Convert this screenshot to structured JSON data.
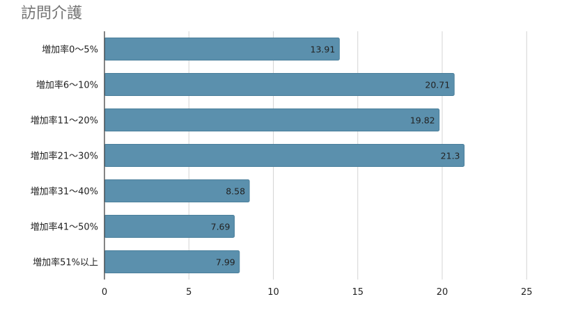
{
  "chart_data": {
    "type": "bar",
    "orientation": "horizontal",
    "title": "訪問介護",
    "categories": [
      "増加率0～5%",
      "増加率6～10%",
      "増加率11～20%",
      "増加率21～30%",
      "増加率31～40%",
      "増加率41～50%",
      "増加率51%以上"
    ],
    "values": [
      13.91,
      20.71,
      19.82,
      21.3,
      8.58,
      7.69,
      7.99
    ],
    "data_labels": [
      "13.91",
      "20.71",
      "19.82",
      "21.3",
      "8.58",
      "7.69",
      "7.99"
    ],
    "xlim": [
      0,
      27
    ],
    "x_ticks": [
      0,
      5,
      10,
      15,
      20,
      25
    ],
    "x_tick_labels": [
      "0",
      "5",
      "10",
      "15",
      "20",
      "25"
    ],
    "grid": true,
    "legend": "none",
    "bar_color": "#5b90ad",
    "bar_border_color": "#4a7f9b",
    "grid_color": "#d4d4d4",
    "axis_color": "#333333"
  }
}
